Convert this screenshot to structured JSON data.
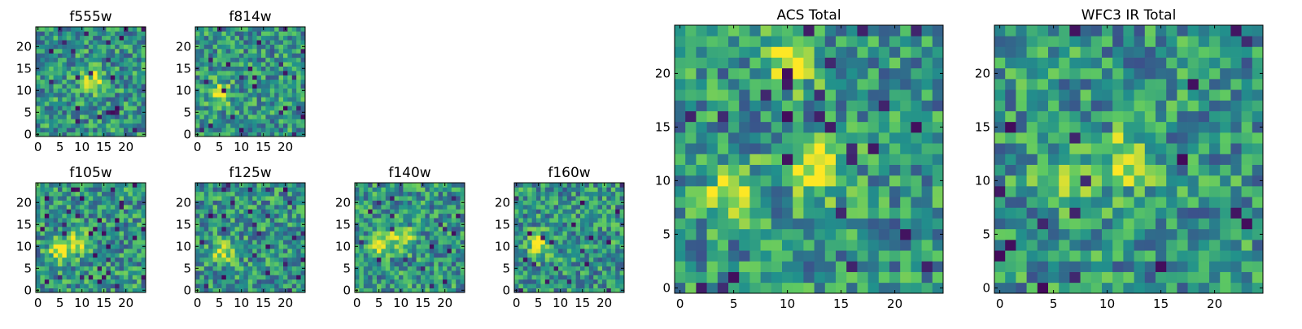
{
  "palette": [
    "#440154",
    "#3b528b",
    "#21918c",
    "#5ec962",
    "#fde725"
  ],
  "chart_data": [
    {
      "type": "heatmap",
      "title": "f555w",
      "xlabel": "",
      "ylabel": "",
      "grid_size": [
        25,
        25
      ],
      "xticks": [
        "0",
        "5",
        "10",
        "15",
        "20"
      ],
      "yticks": [
        "0",
        "5",
        "10",
        "15",
        "20"
      ],
      "xlim": [
        0,
        25
      ],
      "ylim": [
        0,
        25
      ],
      "colormap": "viridis",
      "peaks": [
        [
          13,
          12
        ]
      ]
    },
    {
      "type": "heatmap",
      "title": "f814w",
      "xlabel": "",
      "ylabel": "",
      "grid_size": [
        25,
        25
      ],
      "xticks": [
        "0",
        "5",
        "10",
        "15",
        "20"
      ],
      "yticks": [
        "0",
        "5",
        "10",
        "15",
        "20"
      ],
      "xlim": [
        0,
        25
      ],
      "ylim": [
        0,
        25
      ],
      "colormap": "viridis",
      "peaks": [
        [
          5,
          9
        ]
      ]
    },
    {
      "type": "heatmap",
      "title": "f105w",
      "xlabel": "",
      "ylabel": "",
      "grid_size": [
        25,
        25
      ],
      "xticks": [
        "0",
        "5",
        "10",
        "15",
        "20"
      ],
      "yticks": [
        "0",
        "5",
        "10",
        "15",
        "20"
      ],
      "xlim": [
        0,
        25
      ],
      "ylim": [
        0,
        25
      ],
      "colormap": "viridis",
      "peaks": [
        [
          5,
          9
        ],
        [
          9,
          11
        ]
      ]
    },
    {
      "type": "heatmap",
      "title": "f125w",
      "xlabel": "",
      "ylabel": "",
      "grid_size": [
        25,
        25
      ],
      "xticks": [
        "0",
        "5",
        "10",
        "15",
        "20"
      ],
      "yticks": [
        "0",
        "5",
        "10",
        "15",
        "20"
      ],
      "xlim": [
        0,
        25
      ],
      "ylim": [
        0,
        25
      ],
      "colormap": "viridis",
      "peaks": [
        [
          6,
          9
        ]
      ]
    },
    {
      "type": "heatmap",
      "title": "f140w",
      "xlabel": "",
      "ylabel": "",
      "grid_size": [
        25,
        25
      ],
      "xticks": [
        "0",
        "5",
        "10",
        "15",
        "20"
      ],
      "yticks": [
        "0",
        "5",
        "10",
        "15",
        "20"
      ],
      "xlim": [
        0,
        25
      ],
      "ylim": [
        0,
        25
      ],
      "colormap": "viridis",
      "peaks": [
        [
          5,
          10
        ],
        [
          10,
          12
        ]
      ]
    },
    {
      "type": "heatmap",
      "title": "f160w",
      "xlabel": "",
      "ylabel": "",
      "grid_size": [
        25,
        25
      ],
      "xticks": [
        "0",
        "5",
        "10",
        "15",
        "20"
      ],
      "yticks": [
        "0",
        "5",
        "10",
        "15",
        "20"
      ],
      "xlim": [
        0,
        25
      ],
      "ylim": [
        0,
        25
      ],
      "colormap": "viridis",
      "peaks": [
        [
          5,
          10
        ]
      ]
    },
    {
      "type": "heatmap",
      "title": "ACS Total",
      "xlabel": "",
      "ylabel": "",
      "grid_size": [
        25,
        25
      ],
      "xticks": [
        "0",
        "5",
        "10",
        "15",
        "20"
      ],
      "yticks": [
        "0",
        "5",
        "10",
        "15",
        "20"
      ],
      "xlim": [
        0,
        25
      ],
      "ylim": [
        0,
        25
      ],
      "colormap": "viridis",
      "peaks": [
        [
          5,
          9
        ],
        [
          13,
          11
        ],
        [
          10,
          21
        ]
      ]
    },
    {
      "type": "heatmap",
      "title": "WFC3 IR Total",
      "xlabel": "",
      "ylabel": "",
      "grid_size": [
        25,
        25
      ],
      "xticks": [
        "0",
        "5",
        "10",
        "15",
        "20"
      ],
      "yticks": [
        "0",
        "5",
        "10",
        "15",
        "20"
      ],
      "xlim": [
        0,
        25
      ],
      "ylim": [
        0,
        25
      ],
      "colormap": "viridis",
      "peaks": [
        [
          6,
          10
        ],
        [
          12,
          12
        ]
      ]
    }
  ]
}
